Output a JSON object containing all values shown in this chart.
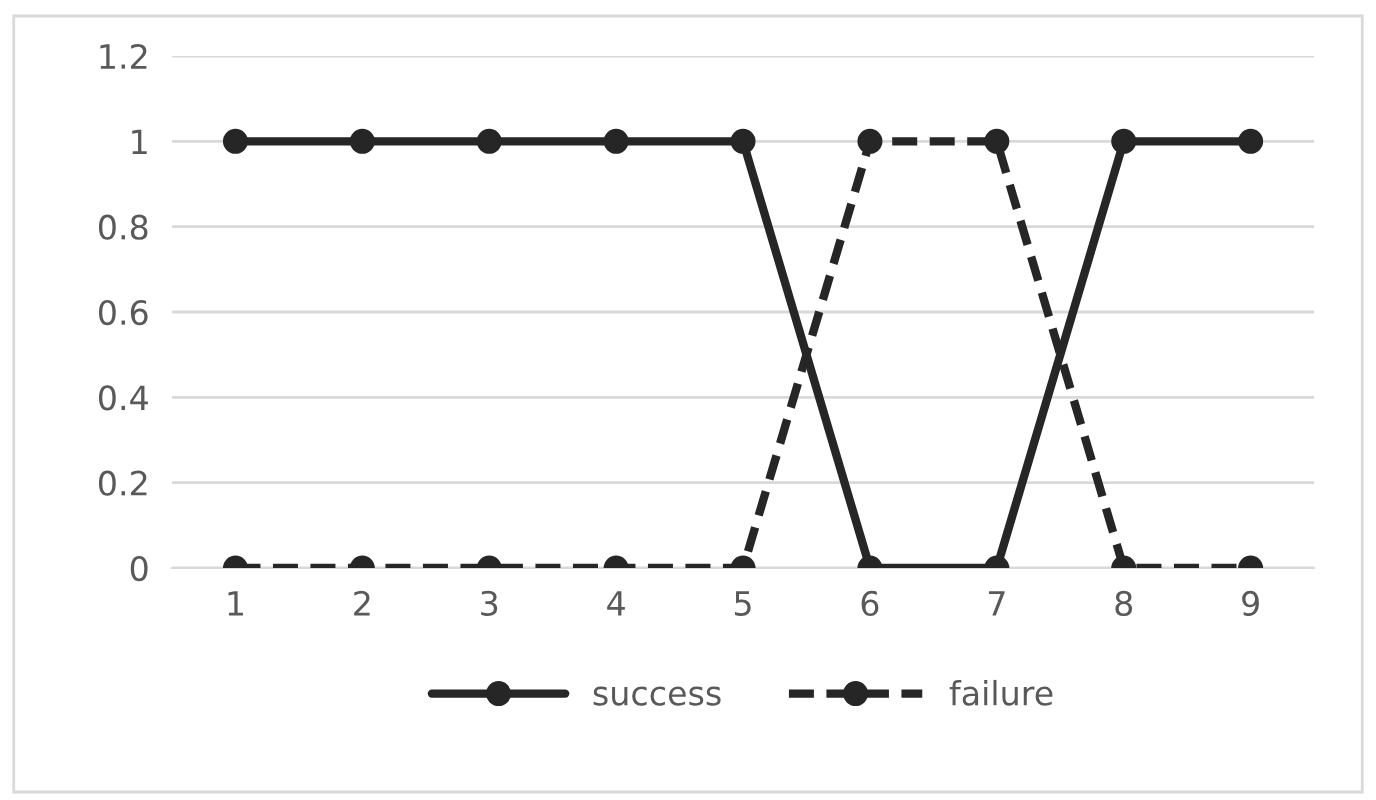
{
  "chart_data": {
    "type": "line",
    "categories": [
      "1",
      "2",
      "3",
      "4",
      "5",
      "6",
      "7",
      "8",
      "9"
    ],
    "series": [
      {
        "name": "success",
        "color": "#262626",
        "values": [
          1,
          1,
          1,
          1,
          1,
          0,
          0,
          1,
          1
        ],
        "line_style": "solid"
      },
      {
        "name": "failure",
        "color": "#262626",
        "values": [
          0,
          0,
          0,
          0,
          0,
          1,
          1,
          0,
          0
        ],
        "line_style": "dashed"
      }
    ],
    "ylim": [
      0,
      1.2
    ],
    "yticks": [
      0,
      0.2,
      0.4,
      0.6,
      0.8,
      1,
      1.2
    ],
    "grid": "y",
    "legend": "bottom",
    "marker": "circle"
  }
}
